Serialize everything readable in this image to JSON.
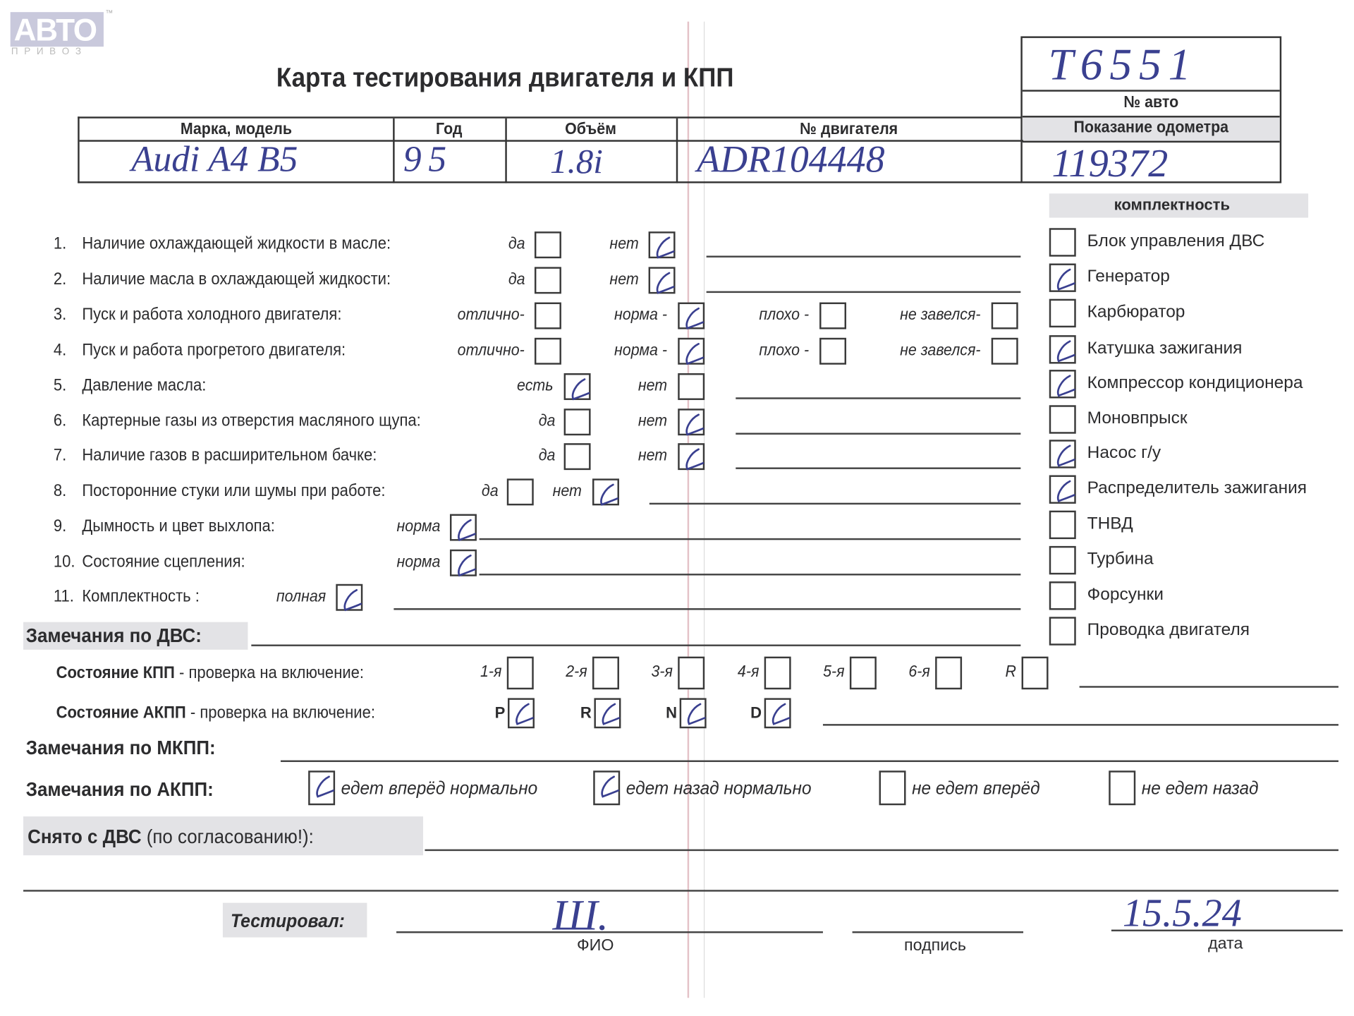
{
  "logo": {
    "text": "АВТО",
    "sub": "П Р И В О З",
    "tm": "™"
  },
  "title": "Карта тестирования двигателя  и КПП",
  "car_number": {
    "value": "T6551",
    "label": "№ авто"
  },
  "vehicle_table": {
    "headers": [
      "Марка, модель",
      "Год",
      "Объём",
      "№ двигателя",
      "Показание одометра"
    ],
    "values": [
      "Audi A4 B5",
      "95",
      "1.8i",
      "ADR104448",
      "119372"
    ]
  },
  "questions": [
    {
      "num": "1.",
      "label": "Наличие охлаждающей жидкости в масле:",
      "options": [
        {
          "label": "да",
          "checked": false
        },
        {
          "label": "нет",
          "checked": true
        }
      ]
    },
    {
      "num": "2.",
      "label": "Наличие масла в охлаждающей жидкости:",
      "options": [
        {
          "label": "да",
          "checked": false
        },
        {
          "label": "нет",
          "checked": true
        }
      ]
    },
    {
      "num": "3.",
      "label": "Пуск и работа холодного двигателя:",
      "options": [
        {
          "label": "отлично-",
          "checked": false
        },
        {
          "label": "норма -",
          "checked": true
        },
        {
          "label": "плохо -",
          "checked": false
        },
        {
          "label": "не завелся-",
          "checked": false
        }
      ]
    },
    {
      "num": "4.",
      "label": "Пуск и работа прогретого двигателя:",
      "options": [
        {
          "label": "отлично-",
          "checked": false
        },
        {
          "label": "норма -",
          "checked": true
        },
        {
          "label": "плохо -",
          "checked": false
        },
        {
          "label": "не завелся-",
          "checked": false
        }
      ]
    },
    {
      "num": "5.",
      "label": "Давление масла:",
      "options": [
        {
          "label": "есть",
          "checked": true
        },
        {
          "label": "нет",
          "checked": false
        }
      ]
    },
    {
      "num": "6.",
      "label": "Картерные газы из отверстия масляного щупа:",
      "options": [
        {
          "label": "да",
          "checked": false
        },
        {
          "label": "нет",
          "checked": true
        }
      ]
    },
    {
      "num": "7.",
      "label": "Наличие газов в расширительном бачке:",
      "options": [
        {
          "label": "да",
          "checked": false
        },
        {
          "label": "нет",
          "checked": true
        }
      ]
    },
    {
      "num": "8.",
      "label": "Посторонние стуки или шумы при работе:",
      "options": [
        {
          "label": "да",
          "checked": false
        },
        {
          "label": "нет",
          "checked": true
        }
      ]
    },
    {
      "num": "9.",
      "label": "Дымность и цвет выхлопа:",
      "options": [
        {
          "label": "норма",
          "checked": true
        }
      ]
    },
    {
      "num": "10.",
      "label": "Состояние сцепления:",
      "options": [
        {
          "label": "норма",
          "checked": true
        }
      ]
    },
    {
      "num": "11.",
      "label": "Комплектность :",
      "options": [
        {
          "label": "полная",
          "checked": true
        }
      ]
    }
  ],
  "completeness": {
    "title": "комплектность",
    "items": [
      {
        "label": "Блок управления ДВС",
        "checked": false
      },
      {
        "label": "Генератор",
        "checked": true
      },
      {
        "label": "Карбюратор",
        "checked": false
      },
      {
        "label": "Катушка зажигания",
        "checked": true
      },
      {
        "label": "Компрессор кондиционера",
        "checked": true
      },
      {
        "label": "Моновпрыск",
        "checked": false
      },
      {
        "label": "Насос г/у",
        "checked": true
      },
      {
        "label": "Распределитель зажигания",
        "checked": true
      },
      {
        "label": "ТНВД",
        "checked": false
      },
      {
        "label": "Турбина",
        "checked": false
      },
      {
        "label": "Форсунки",
        "checked": false
      },
      {
        "label": "Проводка двигателя",
        "checked": false
      }
    ]
  },
  "engine_remarks": {
    "label": "Замечания по ДВС:",
    "value": ""
  },
  "manual_gearbox": {
    "label_bold": "Состояние КПП",
    "label_rest": " - проверка на включение:",
    "gears": [
      {
        "label": "1-я",
        "checked": false
      },
      {
        "label": "2-я",
        "checked": false
      },
      {
        "label": "3-я",
        "checked": false
      },
      {
        "label": "4-я",
        "checked": false
      },
      {
        "label": "5-я",
        "checked": false
      },
      {
        "label": "6-я",
        "checked": false
      },
      {
        "label": "R",
        "checked": false
      }
    ]
  },
  "auto_gearbox": {
    "label_bold": "Состояние АКПП",
    "label_rest": " - проверка на включение:",
    "positions": [
      {
        "label": "P",
        "checked": true
      },
      {
        "label": "R",
        "checked": true
      },
      {
        "label": "N",
        "checked": true
      },
      {
        "label": "D",
        "checked": true
      }
    ]
  },
  "manual_remarks": {
    "label": "Замечания по МКПП:"
  },
  "auto_remarks": {
    "label": "Замечания по АКПП:",
    "options": [
      {
        "label": "едет вперёд нормально",
        "checked": true
      },
      {
        "label": "едет назад нормально",
        "checked": true
      },
      {
        "label": "не едет вперёд",
        "checked": false
      },
      {
        "label": "не едет назад",
        "checked": false
      }
    ]
  },
  "removed": {
    "label_bold": "Снято с ДВС",
    "label_rest": " (по согласованию!):"
  },
  "signature": {
    "tested_by": "Тестировал:",
    "name_label": "ФИО",
    "sign_label": "подпись",
    "date_label": "дата",
    "name_value": "Ш.",
    "date_value": "15.5.24"
  },
  "colors": {
    "ink": "#3a4090",
    "shade": "#e3e3e6",
    "fold": "#d9a8b0"
  }
}
